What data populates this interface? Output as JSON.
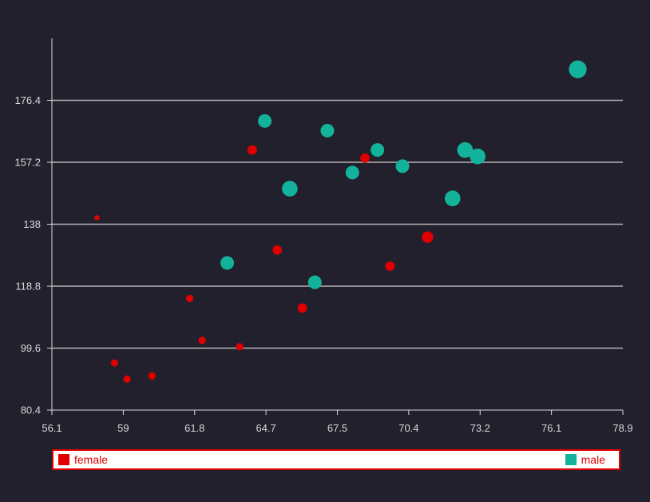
{
  "chart_data": {
    "type": "scatter",
    "x_ticks": [
      "56.1",
      "59",
      "61.8",
      "64.7",
      "67.5",
      "70.4",
      "73.2",
      "76.1",
      "78.9"
    ],
    "y_ticks": [
      "80.4",
      "99.6",
      "118.8",
      "138",
      "157.2",
      "176.4"
    ],
    "xlim": [
      56.1,
      78.9
    ],
    "ylim": [
      80.4,
      195.6
    ],
    "grid": "horizontal",
    "legend_position": "bottom",
    "series": [
      {
        "name": "female",
        "color": "#e00000",
        "points": [
          {
            "x": 57.9,
            "y": 140,
            "size": 1
          },
          {
            "x": 58.6,
            "y": 95,
            "size": 2
          },
          {
            "x": 59.1,
            "y": 90,
            "size": 2
          },
          {
            "x": 60.1,
            "y": 91,
            "size": 2
          },
          {
            "x": 61.6,
            "y": 115,
            "size": 2
          },
          {
            "x": 62.1,
            "y": 102,
            "size": 2
          },
          {
            "x": 63.6,
            "y": 100,
            "size": 2
          },
          {
            "x": 64.1,
            "y": 161,
            "size": 3
          },
          {
            "x": 65.1,
            "y": 130,
            "size": 3
          },
          {
            "x": 66.1,
            "y": 112,
            "size": 3
          },
          {
            "x": 68.6,
            "y": 158.5,
            "size": 3
          },
          {
            "x": 69.6,
            "y": 125,
            "size": 3
          },
          {
            "x": 71.1,
            "y": 134,
            "size": 4
          }
        ]
      },
      {
        "name": "male",
        "color": "#13b39b",
        "points": [
          {
            "x": 63.1,
            "y": 126,
            "size": 5
          },
          {
            "x": 64.6,
            "y": 170,
            "size": 5
          },
          {
            "x": 65.6,
            "y": 149,
            "size": 6
          },
          {
            "x": 66.6,
            "y": 120,
            "size": 5
          },
          {
            "x": 67.1,
            "y": 167,
            "size": 5
          },
          {
            "x": 68.1,
            "y": 154,
            "size": 5
          },
          {
            "x": 69.1,
            "y": 161,
            "size": 5
          },
          {
            "x": 70.1,
            "y": 156,
            "size": 5
          },
          {
            "x": 72.1,
            "y": 146,
            "size": 6
          },
          {
            "x": 72.6,
            "y": 161,
            "size": 6
          },
          {
            "x": 73.1,
            "y": 159,
            "size": 6
          },
          {
            "x": 77.1,
            "y": 186,
            "size": 7
          }
        ]
      }
    ]
  },
  "legend": {
    "female_label": "female",
    "male_label": "male",
    "female_color": "#e00000",
    "male_color": "#13b39b"
  }
}
